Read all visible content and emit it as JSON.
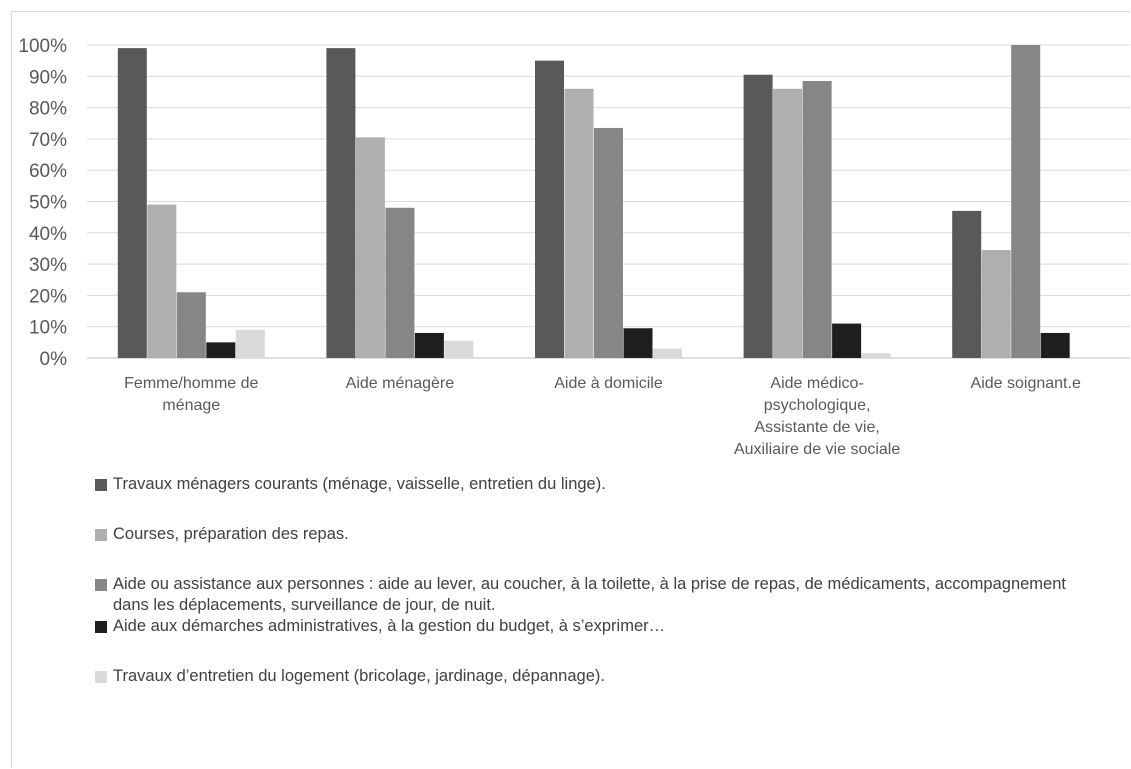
{
  "chart_data": {
    "type": "bar",
    "categories": [
      [
        "Femme/homme de",
        "ménage"
      ],
      [
        "Aide ménagère"
      ],
      [
        "Aide à domicile"
      ],
      [
        "Aide médico-",
        "psychologique,",
        "Assistante de vie,",
        "Auxiliaire de vie sociale"
      ],
      [
        "Aide soignant.e"
      ]
    ],
    "ylim": [
      0,
      100
    ],
    "yticks": [
      0,
      10,
      20,
      30,
      40,
      50,
      60,
      70,
      80,
      90,
      100
    ],
    "ytick_labels": [
      "0%",
      "10%",
      "20%",
      "30%",
      "40%",
      "50%",
      "60%",
      "70%",
      "80%",
      "90%",
      "100%"
    ],
    "grid": true,
    "legend_position": "bottom",
    "series": [
      {
        "name": "Travaux ménagers courants (ménage, vaisselle, entretien du linge).",
        "color": "#595959",
        "values": [
          99,
          99,
          95,
          90.5,
          47
        ]
      },
      {
        "name": "Courses, préparation des repas.",
        "color": "#afafaf",
        "values": [
          49,
          70.5,
          86,
          86,
          34.5
        ]
      },
      {
        "name": "Aide ou assistance aux personnes : aide au lever, au coucher, à la toilette, à la prise de repas, de médicaments, accompagnement dans les déplacements, surveillance de jour, de nuit.",
        "color": "#868686",
        "values": [
          21,
          48,
          73.5,
          88.5,
          100
        ]
      },
      {
        "name": "Aide aux démarches administratives, à la gestion du budget, à s’exprimer…",
        "color": "#1e1e1e",
        "values": [
          5,
          8,
          9.5,
          11,
          8
        ]
      },
      {
        "name": "Travaux d’entretien du logement (bricolage, jardinage, dépannage).",
        "color": "#d9d9d9",
        "values": [
          9,
          5.5,
          3,
          1.5,
          null
        ]
      }
    ]
  }
}
